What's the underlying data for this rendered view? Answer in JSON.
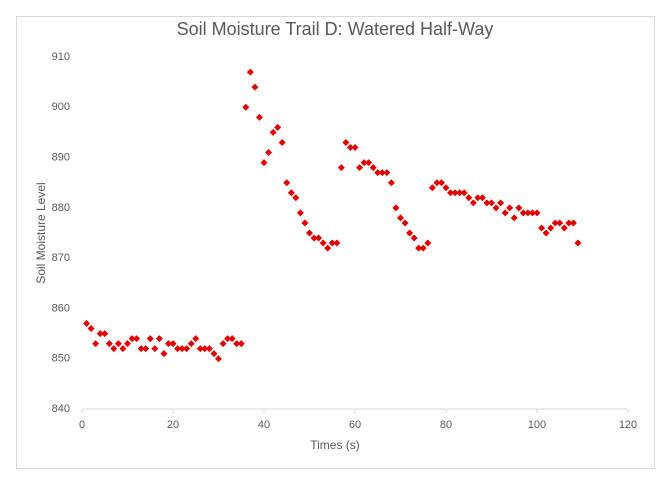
{
  "chart_data": {
    "type": "scatter",
    "title": "Soil Moisture Trail D: Watered Half-Way",
    "x_label": "Times (s)",
    "y_label": "Soil Moisture Level",
    "xlim": [
      0,
      120
    ],
    "xticks": [
      0,
      20,
      40,
      60,
      80,
      100,
      120
    ],
    "ylim": [
      840,
      910
    ],
    "yticks": [
      840,
      850,
      860,
      870,
      880,
      890,
      900,
      910
    ],
    "grid": false,
    "color": "#e00000",
    "marker": "diamond",
    "x": [
      1,
      2,
      3,
      4,
      5,
      6,
      7,
      8,
      9,
      10,
      11,
      12,
      13,
      14,
      15,
      16,
      17,
      18,
      19,
      20,
      21,
      22,
      23,
      24,
      25,
      26,
      27,
      28,
      29,
      30,
      31,
      32,
      33,
      34,
      35,
      36,
      37,
      38,
      39,
      40,
      41,
      42,
      43,
      44,
      45,
      46,
      47,
      48,
      49,
      50,
      51,
      52,
      53,
      54,
      55,
      56,
      57,
      58,
      59,
      60,
      61,
      62,
      63,
      64,
      65,
      66,
      67,
      68,
      69,
      70,
      71,
      72,
      73,
      74,
      75,
      76,
      77,
      78,
      79,
      80,
      81,
      82,
      83,
      84,
      85,
      86,
      87,
      88,
      89,
      90,
      91,
      92,
      93,
      94,
      95,
      96,
      97,
      98,
      99,
      100,
      101,
      102,
      103,
      104,
      105,
      106,
      107,
      108,
      109
    ],
    "values": [
      857,
      856,
      853,
      855,
      855,
      853,
      852,
      853,
      852,
      853,
      854,
      854,
      852,
      852,
      854,
      852,
      854,
      851,
      853,
      853,
      852,
      852,
      852,
      853,
      854,
      852,
      852,
      852,
      851,
      850,
      853,
      854,
      854,
      853,
      853,
      900,
      907,
      904,
      898,
      889,
      891,
      895,
      896,
      893,
      885,
      883,
      882,
      879,
      877,
      875,
      874,
      874,
      873,
      872,
      873,
      873,
      888,
      893,
      892,
      892,
      888,
      889,
      889,
      888,
      887,
      887,
      887,
      885,
      880,
      878,
      877,
      875,
      874,
      872,
      872,
      873,
      884,
      885,
      885,
      884,
      883,
      883,
      883,
      883,
      882,
      881,
      882,
      882,
      881,
      881,
      880,
      881,
      879,
      880,
      878,
      880,
      879,
      879,
      879,
      879,
      876,
      875,
      876,
      877,
      877,
      876,
      877,
      877,
      873
    ]
  }
}
